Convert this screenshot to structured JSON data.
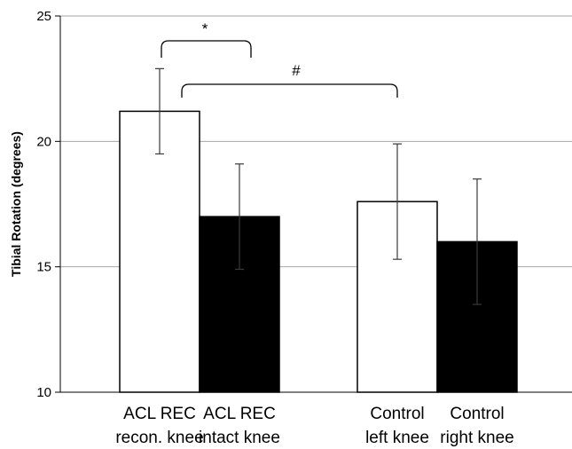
{
  "chart_data": {
    "type": "bar",
    "title": "",
    "ylabel": "Tibial Rotation (degrees)",
    "xlabel": "",
    "ylim": [
      10,
      25
    ],
    "yticks": [
      10,
      15,
      20,
      25
    ],
    "grid": true,
    "categories": [
      {
        "line1": "ACL REC",
        "line2": "recon. knee"
      },
      {
        "line1": "ACL REC",
        "line2": "intact knee"
      },
      {
        "line1": "Control",
        "line2": "left knee"
      },
      {
        "line1": "Control",
        "line2": "right knee"
      }
    ],
    "values": [
      21.2,
      17.0,
      17.6,
      16.0
    ],
    "errors": [
      1.7,
      2.1,
      2.3,
      2.5
    ],
    "fills": [
      "#ffffff",
      "#000000",
      "#ffffff",
      "#000000"
    ],
    "annotations": [
      {
        "label": "*",
        "from": 0,
        "to": 1
      },
      {
        "label": "#",
        "from": 0,
        "to": 2
      }
    ]
  }
}
